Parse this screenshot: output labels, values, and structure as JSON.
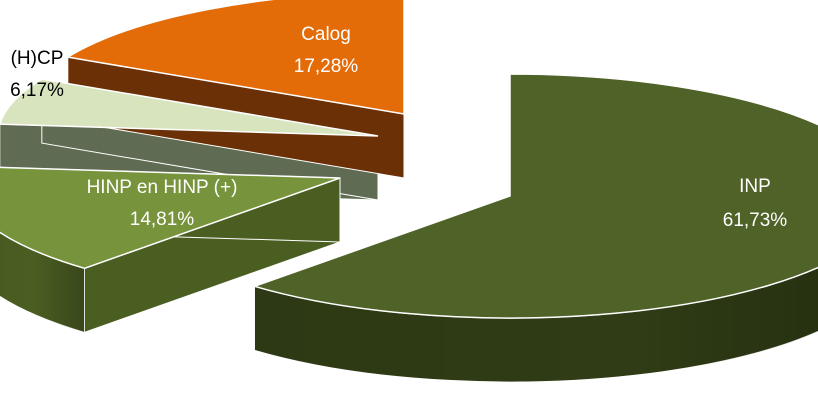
{
  "chart_data": {
    "type": "pie",
    "style": "3d-exploded",
    "title": "",
    "legend": "none",
    "slices": [
      {
        "category": "INP",
        "value": 61.73,
        "value_label": "61,73%",
        "color": "#4f6228",
        "side_color": "#2f3c15",
        "label_color": "#ffffff"
      },
      {
        "category": "HINP en HINP (+)",
        "value": 14.81,
        "value_label": "14,81%",
        "color": "#77933c",
        "side_color": "#4a5e22",
        "label_color": "#ffffff"
      },
      {
        "category": "(H)CP",
        "value": 6.17,
        "value_label": "6,17%",
        "color": "#d7e4bd",
        "side_color": "#5f6b52",
        "label_color": "#000000"
      },
      {
        "category": "Calog",
        "value": 17.28,
        "value_label": "17,28%",
        "color": "#e36c09",
        "side_color": "#6b3005",
        "label_color": "#ffffff"
      }
    ]
  }
}
